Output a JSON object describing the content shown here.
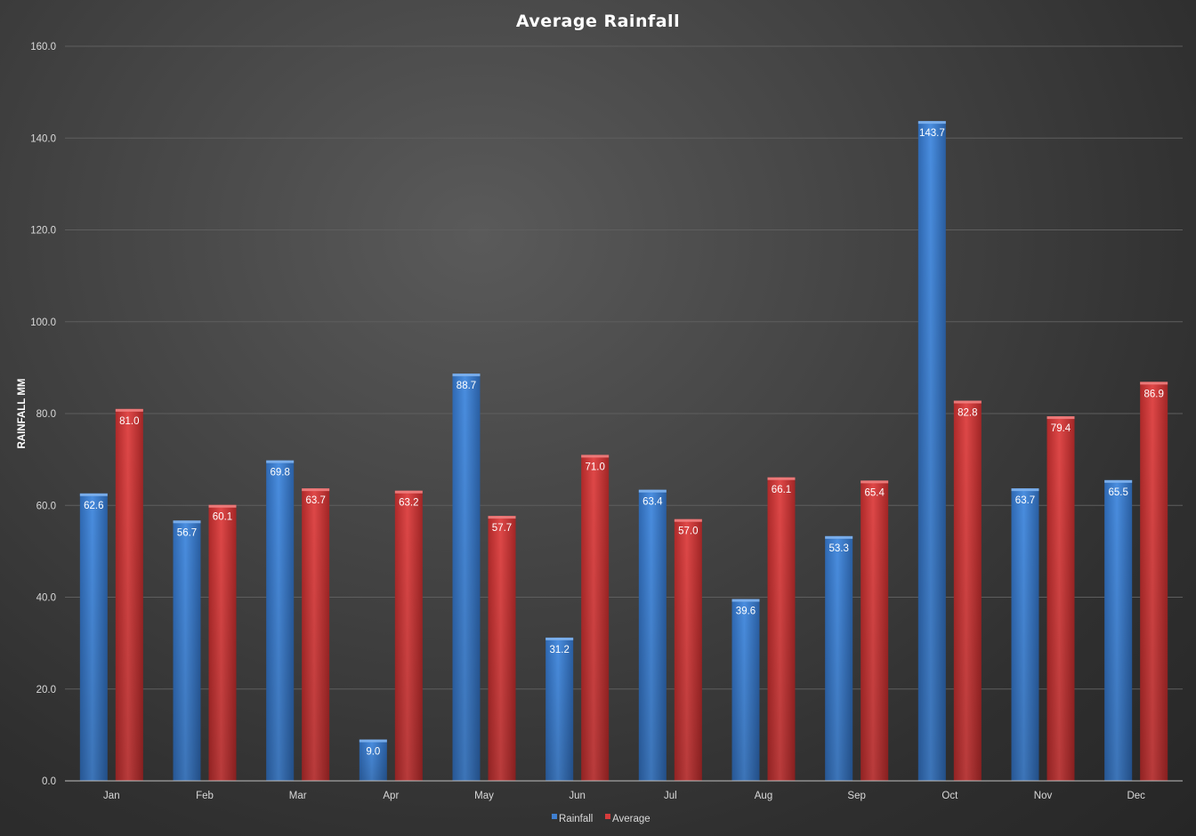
{
  "chart_data": {
    "type": "bar",
    "title": "Average Rainfall",
    "xlabel": "",
    "ylabel": "RAINFALL MM",
    "ylim": [
      0,
      160
    ],
    "yticks": [
      "0.0",
      "20.0",
      "40.0",
      "60.0",
      "80.0",
      "100.0",
      "120.0",
      "140.0",
      "160.0"
    ],
    "categories": [
      "Jan",
      "Feb",
      "Mar",
      "Apr",
      "May",
      "Jun",
      "Jul",
      "Aug",
      "Sep",
      "Oct",
      "Nov",
      "Dec"
    ],
    "series": [
      {
        "name": "Rainfall",
        "color": "#3f7fd0",
        "values": [
          62.6,
          56.7,
          69.8,
          9.0,
          88.7,
          31.2,
          63.4,
          39.6,
          53.3,
          143.7,
          63.7,
          65.5
        ]
      },
      {
        "name": "Average",
        "color": "#d63c3c",
        "values": [
          81.0,
          60.1,
          63.7,
          63.2,
          57.7,
          71.0,
          57.0,
          66.1,
          65.4,
          82.8,
          79.4,
          86.9
        ]
      }
    ],
    "grid": true,
    "legend": "bottom"
  }
}
